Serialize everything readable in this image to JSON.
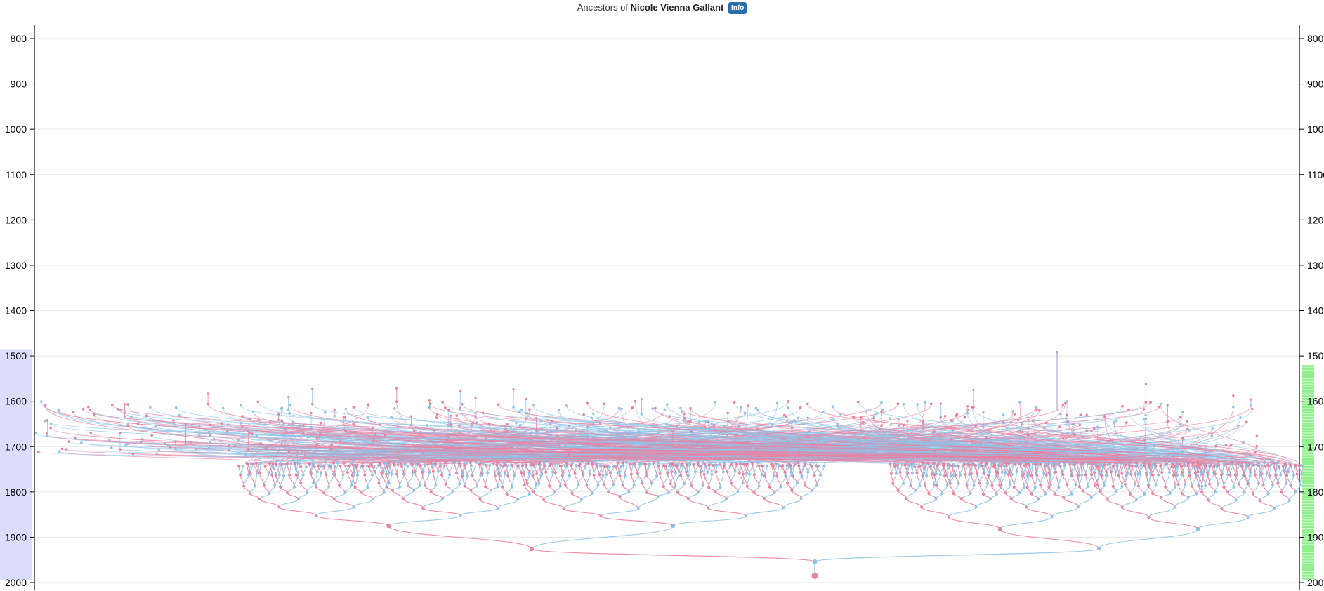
{
  "header": {
    "prefix": "Ancestors of",
    "person": "Nicole Vienna Gallant",
    "info_label": "Info"
  },
  "colors": {
    "male": "#8ec4e8",
    "female": "#f07c9c",
    "left_band": "#dcdcfb",
    "right_band": "#8ef08a",
    "grid": "#e6e6e6"
  },
  "chart_data": {
    "type": "tree",
    "orientation": "vertical",
    "y_axis": {
      "label": "",
      "min": 800,
      "max": 2000,
      "ticks": [
        800,
        900,
        1000,
        1100,
        1200,
        1300,
        1400,
        1500,
        1600,
        1700,
        1800,
        1900,
        2000
      ],
      "grid": true,
      "placement": "left and right"
    },
    "root": {
      "sex": "female",
      "year": 1985
    },
    "parents": [
      {
        "sex": "female",
        "year": 1926
      },
      {
        "sex": "male",
        "year": 1925
      }
    ],
    "grandparents": [
      {
        "sex": "female",
        "year": 1903
      },
      {
        "sex": "male",
        "year": 1900
      },
      {
        "sex": "female",
        "year": 1895
      },
      {
        "sex": "male",
        "year": 1893
      }
    ],
    "ancestor_year_range": [
      1490,
      1985
    ],
    "left_band_range": [
      1485,
      1995
    ],
    "right_band_range": [
      1520,
      1995
    ]
  }
}
